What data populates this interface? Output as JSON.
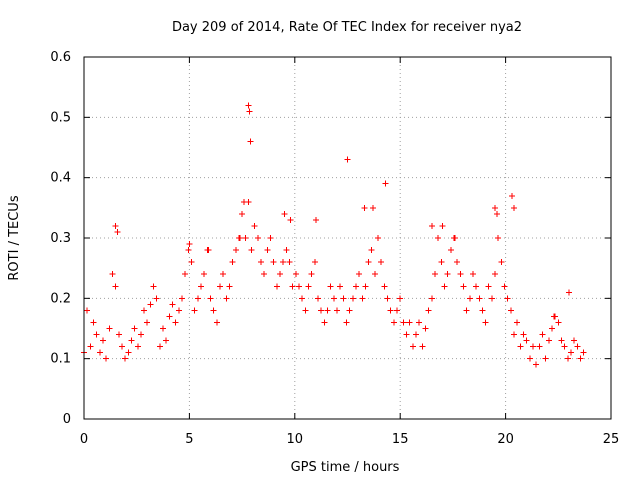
{
  "chart_data": {
    "type": "scatter",
    "title": "Day 209 of 2014, Rate Of TEC Index for receiver nya2",
    "xlabel": "GPS time / hours",
    "ylabel": "ROTI / TECUs",
    "xlim": [
      0,
      25
    ],
    "ylim": [
      0,
      0.6
    ],
    "x_ticks": [
      "0",
      "5",
      "10",
      "15",
      "20",
      "25"
    ],
    "y_ticks": [
      "0",
      "0.1",
      "0.2",
      "0.3",
      "0.4",
      "0.5",
      "0.6"
    ],
    "grid": true,
    "legend": "none",
    "marker": "plus",
    "color": "#ff0000",
    "series": [
      {
        "x": [
          0.0,
          0.15,
          0.3,
          0.45,
          0.6,
          0.75,
          0.9,
          1.05,
          1.2,
          1.35,
          1.5,
          1.65,
          1.8,
          1.95,
          2.1,
          2.25,
          2.4,
          2.55,
          2.7,
          2.85,
          3.0,
          3.15,
          3.3,
          3.45,
          3.6,
          3.75,
          3.9,
          4.05,
          4.2,
          4.35,
          4.5,
          4.65,
          4.8,
          4.95,
          5.1,
          5.25,
          5.4,
          5.55,
          5.7,
          5.85,
          6.0,
          6.15,
          6.3,
          6.45,
          6.6,
          6.75,
          6.9,
          7.05,
          7.2,
          7.35,
          7.5,
          7.65,
          7.8,
          7.95,
          8.1,
          8.25,
          8.4,
          8.55,
          8.7,
          8.85,
          9.0,
          9.15,
          9.3,
          9.45,
          9.6,
          9.75,
          9.9,
          10.05,
          10.2,
          10.35,
          10.5,
          10.65,
          10.8,
          10.95,
          11.1,
          11.25,
          11.4,
          11.55,
          11.7,
          11.85,
          12.0,
          12.15,
          12.3,
          12.45,
          12.6,
          12.75,
          12.9,
          13.05,
          13.2,
          13.35,
          13.5,
          13.65,
          13.8,
          13.95,
          14.1,
          14.25,
          14.4,
          14.55,
          14.7,
          14.85,
          15.0,
          15.15,
          15.3,
          15.45,
          15.6,
          15.75,
          15.9,
          16.05,
          16.2,
          16.35,
          16.5,
          16.65,
          16.8,
          16.95,
          17.1,
          17.25,
          17.4,
          17.55,
          17.7,
          17.85,
          18.0,
          18.15,
          18.3,
          18.45,
          18.6,
          18.75,
          18.9,
          19.05,
          19.2,
          19.35,
          19.5,
          19.65,
          19.8,
          19.95,
          20.1,
          20.25,
          20.4,
          20.55,
          20.7,
          20.85,
          21.0,
          21.15,
          21.3,
          21.45,
          21.6,
          21.75,
          21.9,
          22.05,
          22.2,
          22.35,
          22.5,
          22.65,
          22.8,
          22.95,
          23.1,
          23.25,
          23.4,
          23.55,
          23.7,
          1.5,
          1.6,
          5.0,
          5.9,
          7.4,
          7.5,
          7.6,
          7.8,
          7.85,
          7.9,
          9.5,
          9.8,
          11.0,
          12.5,
          13.3,
          13.7,
          14.3,
          16.5,
          17.0,
          17.6,
          19.5,
          19.6,
          20.3,
          20.4,
          22.3,
          23.0
        ],
        "y": [
          0.11,
          0.18,
          0.12,
          0.16,
          0.14,
          0.11,
          0.13,
          0.1,
          0.15,
          0.24,
          0.22,
          0.14,
          0.12,
          0.1,
          0.11,
          0.13,
          0.15,
          0.12,
          0.14,
          0.18,
          0.16,
          0.19,
          0.22,
          0.2,
          0.12,
          0.15,
          0.13,
          0.17,
          0.19,
          0.16,
          0.18,
          0.2,
          0.24,
          0.28,
          0.26,
          0.18,
          0.2,
          0.22,
          0.24,
          0.28,
          0.2,
          0.18,
          0.16,
          0.22,
          0.24,
          0.2,
          0.22,
          0.26,
          0.28,
          0.3,
          0.34,
          0.3,
          0.36,
          0.28,
          0.32,
          0.3,
          0.26,
          0.24,
          0.28,
          0.3,
          0.26,
          0.22,
          0.24,
          0.26,
          0.28,
          0.26,
          0.22,
          0.24,
          0.22,
          0.2,
          0.18,
          0.22,
          0.24,
          0.26,
          0.2,
          0.18,
          0.16,
          0.18,
          0.22,
          0.2,
          0.18,
          0.22,
          0.2,
          0.16,
          0.18,
          0.2,
          0.22,
          0.24,
          0.2,
          0.22,
          0.26,
          0.28,
          0.24,
          0.3,
          0.26,
          0.22,
          0.2,
          0.18,
          0.16,
          0.18,
          0.2,
          0.16,
          0.14,
          0.16,
          0.12,
          0.14,
          0.16,
          0.12,
          0.15,
          0.18,
          0.2,
          0.24,
          0.3,
          0.26,
          0.22,
          0.24,
          0.28,
          0.3,
          0.26,
          0.24,
          0.22,
          0.18,
          0.2,
          0.24,
          0.22,
          0.2,
          0.18,
          0.16,
          0.22,
          0.2,
          0.24,
          0.3,
          0.26,
          0.22,
          0.2,
          0.18,
          0.14,
          0.16,
          0.12,
          0.14,
          0.13,
          0.1,
          0.12,
          0.09,
          0.12,
          0.14,
          0.1,
          0.13,
          0.15,
          0.17,
          0.16,
          0.13,
          0.12,
          0.1,
          0.11,
          0.13,
          0.12,
          0.1,
          0.11,
          0.32,
          0.31,
          0.29,
          0.28,
          0.3,
          0.34,
          0.36,
          0.52,
          0.51,
          0.46,
          0.34,
          0.33,
          0.33,
          0.43,
          0.35,
          0.35,
          0.39,
          0.32,
          0.32,
          0.3,
          0.35,
          0.34,
          0.37,
          0.35,
          0.17,
          0.21
        ]
      }
    ]
  }
}
